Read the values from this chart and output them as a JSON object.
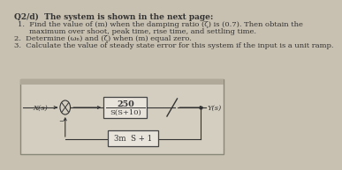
{
  "bg_color": "#c8c0b0",
  "text_color": "#1a1a1a",
  "title_text": "Q2/d)  The system is shown in the next page:",
  "q1a": "1.  Find the value of (m) when the damping ratio (ζ) is (0.7). Then obtain the",
  "q1b": "     maximum over shoot, peak time, rise time, and settling time.",
  "q2": "2.  Determine (ωₙ) and (ζ) when (m) equal zero.",
  "q3": "3.  Calculate the value of steady state error for this system if the input is a unit ramp.",
  "forward_num": "250",
  "forward_den": "S(S+10)",
  "feedback_text": "3m  S + 1",
  "x_label": "X(s)",
  "y_label": "Y(s)",
  "box_bg": "#e8e4dc",
  "box_edge": "#444444",
  "line_color": "#333333",
  "circle_color": "#333333",
  "diagram_bg": "#d4cec0",
  "diagram_border": "#888878",
  "paper_top_bar": "#b0a898"
}
